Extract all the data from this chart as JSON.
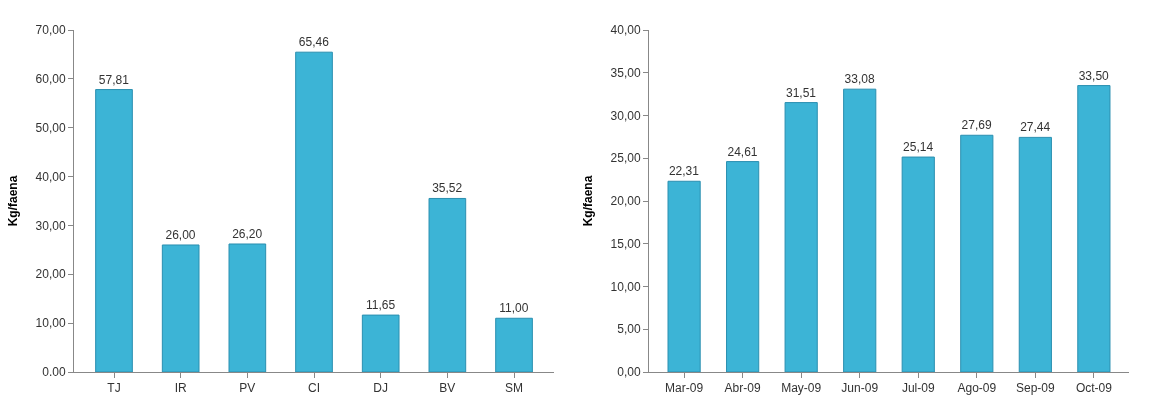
{
  "chart_data": [
    {
      "type": "bar",
      "ylabel": "Kg/faena",
      "categories": [
        "TJ",
        "IR",
        "PV",
        "CI",
        "DJ",
        "BV",
        "SM"
      ],
      "values": [
        57.81,
        26.0,
        26.2,
        65.46,
        11.65,
        35.52,
        11.0
      ],
      "color": "#3cb4d6",
      "value_labels": [
        "57,81",
        "26,00",
        "26,20",
        "65,46",
        "11,65",
        "35,52",
        "11,00"
      ],
      "ylim": [
        0,
        70
      ],
      "yticks": [
        {
          "value": 0,
          "label": "0.00"
        },
        {
          "value": 10,
          "label": "10,00"
        },
        {
          "value": 20,
          "label": "20,00"
        },
        {
          "value": 30,
          "label": "30,00"
        },
        {
          "value": 40,
          "label": "40,00"
        },
        {
          "value": 50,
          "label": "50,00"
        },
        {
          "value": 60,
          "label": "60,00"
        },
        {
          "value": 70,
          "label": "70,00"
        }
      ]
    },
    {
      "type": "bar",
      "ylabel": "Kg/faena",
      "categories": [
        "Mar-09",
        "Abr-09",
        "May-09",
        "Jun-09",
        "Jul-09",
        "Ago-09",
        "Sep-09",
        "Oct-09"
      ],
      "values": [
        22.31,
        24.61,
        31.51,
        33.08,
        25.14,
        27.69,
        27.44,
        33.5
      ],
      "color": "#3cb4d6",
      "value_labels": [
        "22,31",
        "24,61",
        "31,51",
        "33,08",
        "25,14",
        "27,69",
        "27,44",
        "33,50"
      ],
      "ylim": [
        0,
        40
      ],
      "yticks": [
        {
          "value": 0,
          "label": "0,00"
        },
        {
          "value": 5,
          "label": "5,00"
        },
        {
          "value": 10,
          "label": "10,00"
        },
        {
          "value": 15,
          "label": "15,00"
        },
        {
          "value": 20,
          "label": "20,00"
        },
        {
          "value": 25,
          "label": "25,00"
        },
        {
          "value": 30,
          "label": "30,00"
        },
        {
          "value": 35,
          "label": "35,00"
        },
        {
          "value": 40,
          "label": "40,00"
        }
      ]
    }
  ]
}
